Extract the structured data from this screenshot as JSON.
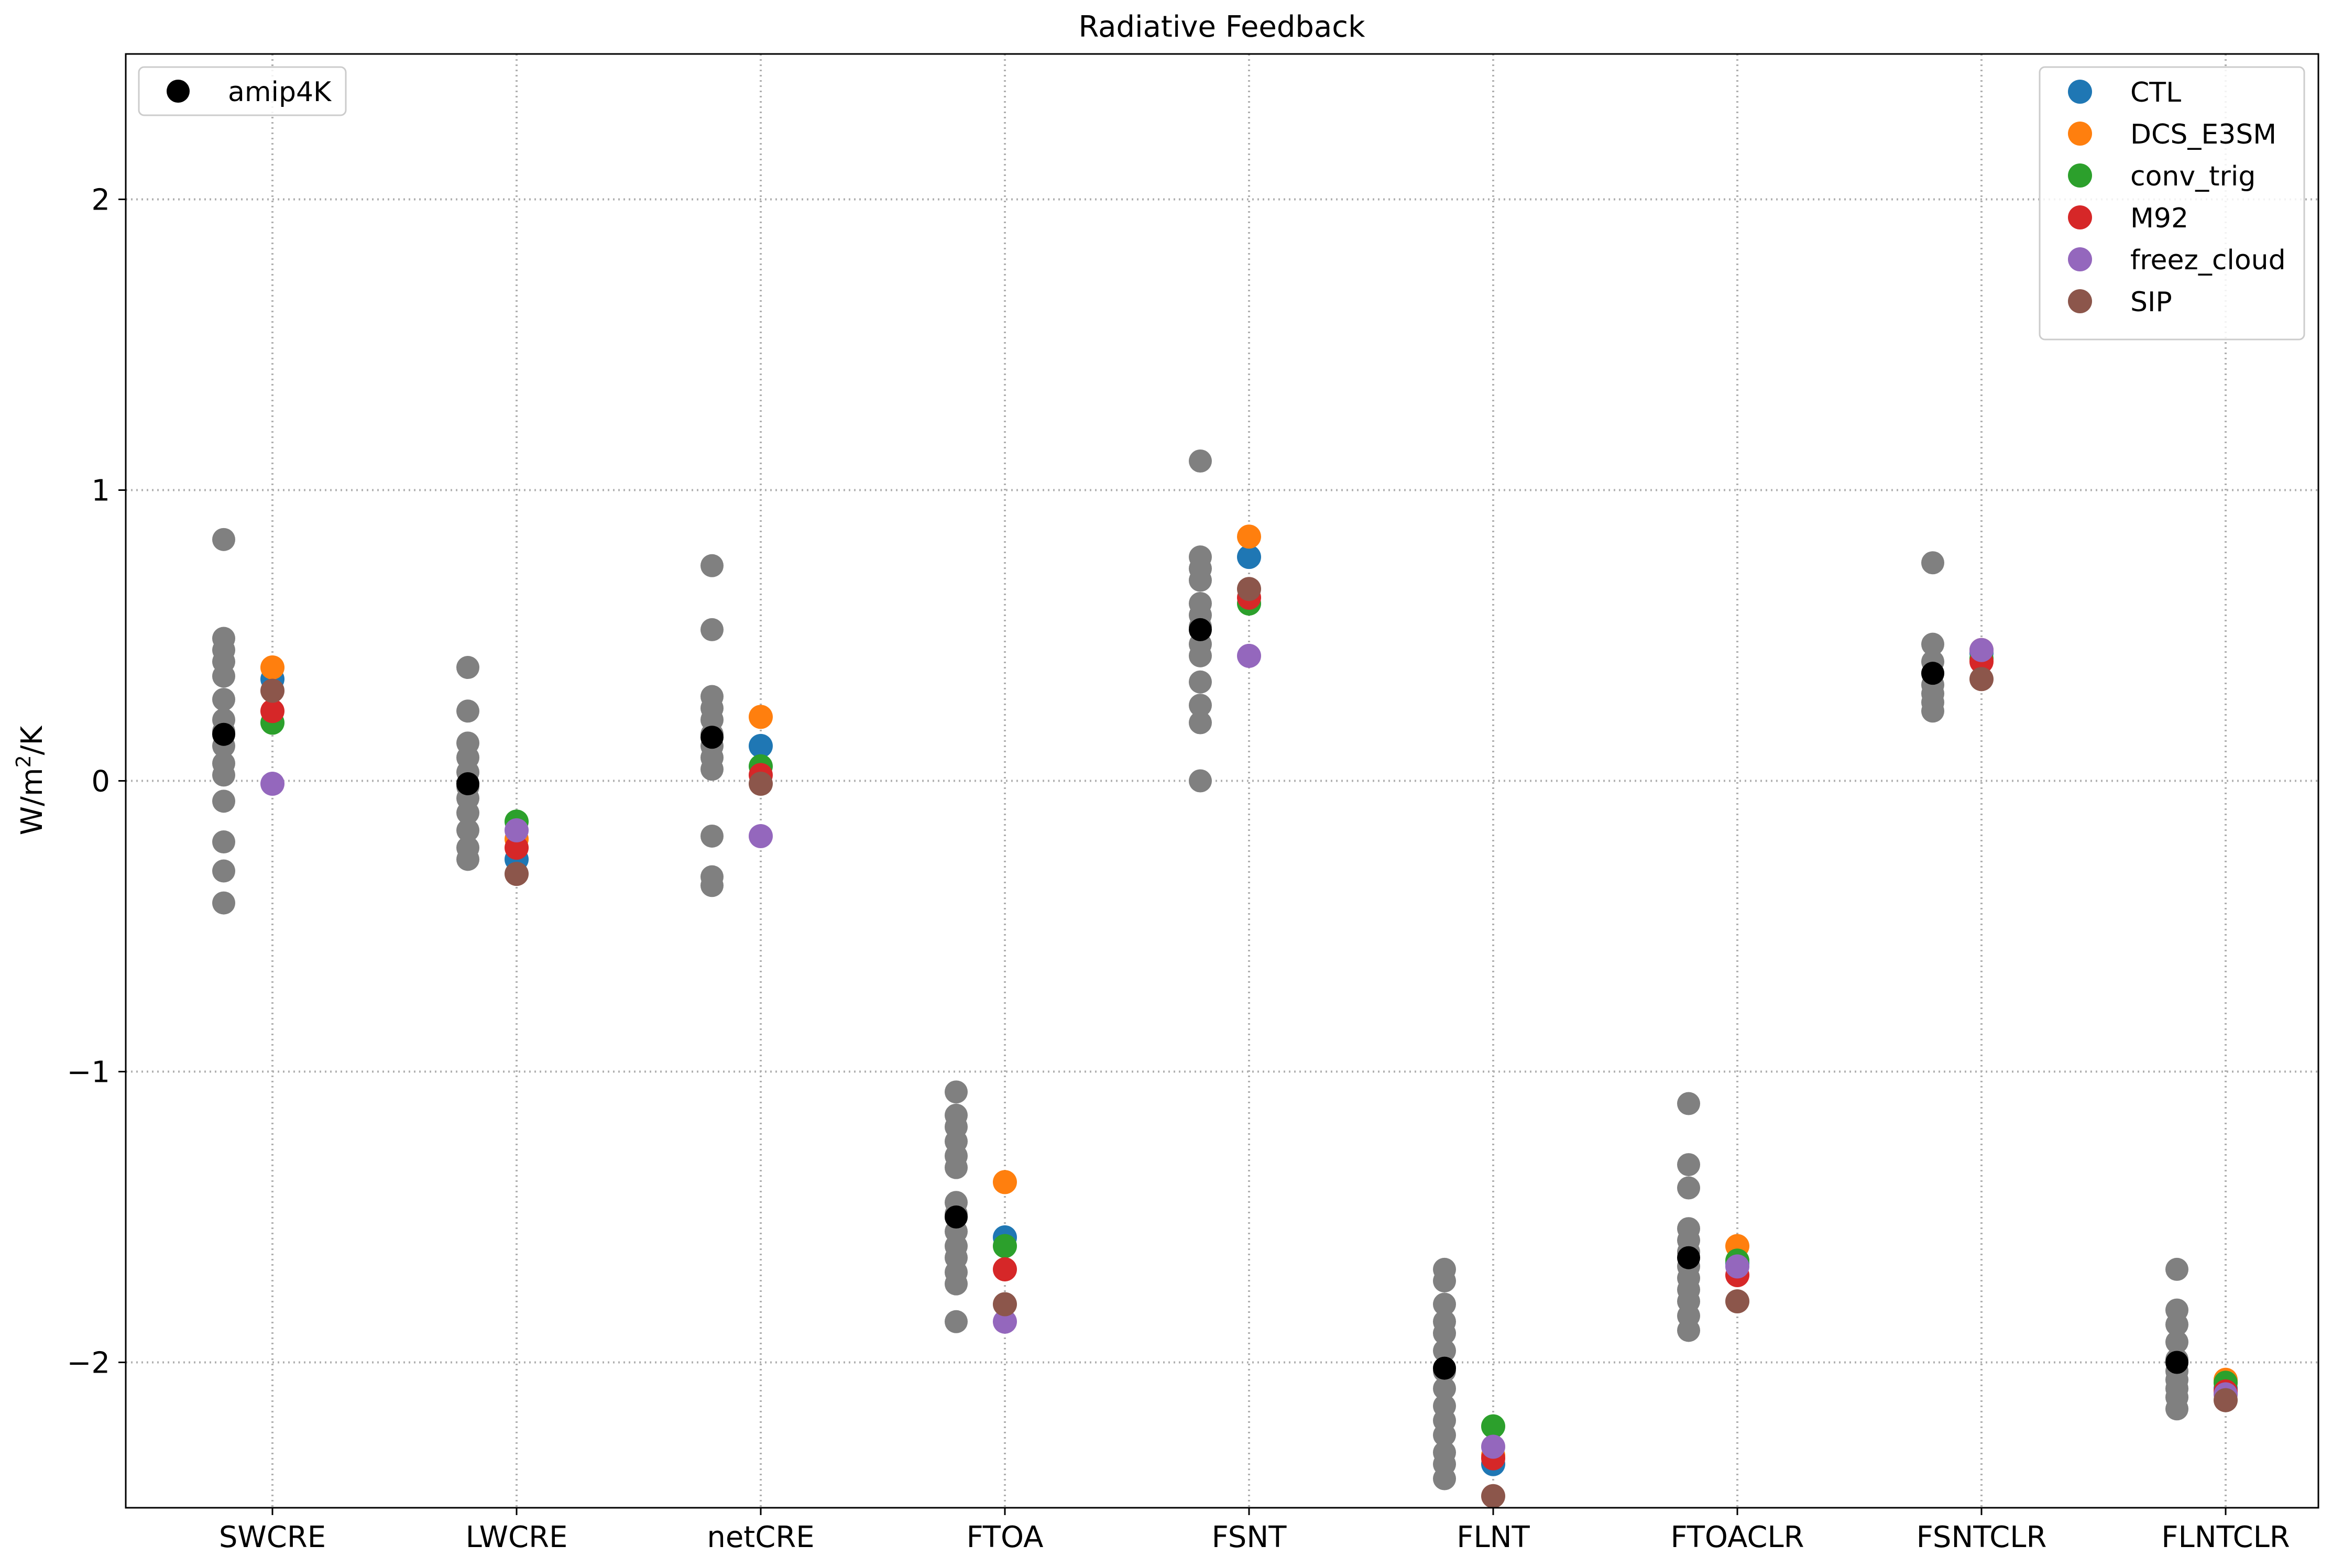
{
  "chart_data": {
    "type": "scatter",
    "title": "Radiative Feedback",
    "ylabel_base": "W/m",
    "ylabel_sup": "2",
    "ylabel_tail": "/K",
    "ylim": [
      -2.5,
      2.5
    ],
    "yticks": [
      2,
      1,
      0,
      -1,
      -2
    ],
    "ytick_labels": [
      "2",
      "1",
      "0",
      "−1",
      "−2"
    ],
    "grid": true,
    "categories": [
      "SWCRE",
      "LWCRE",
      "netCRE",
      "FTOA",
      "FSNT",
      "FLNT",
      "FTOACLR",
      "FSNTCLR",
      "FLNTCLR"
    ],
    "gray_color": "#808080",
    "gray_points": [
      [
        0.83,
        0.49,
        0.45,
        0.41,
        0.36,
        0.28,
        0.21,
        0.17,
        0.12,
        0.06,
        0.02,
        -0.07,
        -0.21,
        -0.31,
        -0.42
      ],
      [
        0.39,
        0.24,
        0.13,
        0.08,
        0.03,
        -0.02,
        -0.06,
        -0.11,
        -0.17,
        -0.23,
        -0.27
      ],
      [
        0.74,
        0.52,
        0.29,
        0.25,
        0.21,
        0.16,
        0.12,
        0.08,
        0.04,
        -0.19,
        -0.33,
        -0.36
      ],
      [
        -1.07,
        -1.15,
        -1.19,
        -1.24,
        -1.29,
        -1.33,
        -1.45,
        -1.49,
        -1.55,
        -1.6,
        -1.64,
        -1.69,
        -1.73,
        -1.86
      ],
      [
        1.1,
        0.77,
        0.73,
        0.69,
        0.61,
        0.57,
        0.53,
        0.47,
        0.43,
        0.34,
        0.26,
        0.2,
        0.0
      ],
      [
        -1.68,
        -1.72,
        -1.8,
        -1.86,
        -1.9,
        -1.96,
        -2.03,
        -2.09,
        -2.15,
        -2.2,
        -2.25,
        -2.31,
        -2.35,
        -2.4
      ],
      [
        -1.11,
        -1.32,
        -1.4,
        -1.54,
        -1.58,
        -1.62,
        -1.67,
        -1.71,
        -1.75,
        -1.79,
        -1.84,
        -1.89
      ],
      [
        0.75,
        0.47,
        0.41,
        0.37,
        0.33,
        0.3,
        0.27,
        0.24
      ],
      [
        -1.68,
        -1.82,
        -1.87,
        -1.93,
        -1.99,
        -2.03,
        -2.06,
        -2.09,
        -2.12,
        -2.16
      ]
    ],
    "amip4K": {
      "name": "amip4K",
      "color": "#000000",
      "values": [
        0.16,
        -0.01,
        0.15,
        -1.5,
        0.52,
        -2.02,
        -1.64,
        0.37,
        -2.0
      ]
    },
    "series": [
      {
        "name": "CTL",
        "color": "#1f77b4",
        "values": [
          0.35,
          -0.27,
          0.12,
          -1.57,
          0.77,
          -2.35,
          -1.66,
          0.44,
          -2.09
        ]
      },
      {
        "name": "DCS_E3SM",
        "color": "#ff7f0e",
        "values": [
          0.39,
          -0.2,
          0.22,
          -1.38,
          0.84,
          -2.32,
          -1.6,
          0.45,
          -2.06
        ]
      },
      {
        "name": "conv_trig",
        "color": "#2ca02c",
        "values": [
          0.2,
          -0.14,
          0.05,
          -1.6,
          0.61,
          -2.22,
          -1.65,
          0.42,
          -2.07
        ]
      },
      {
        "name": "M92",
        "color": "#d62728",
        "values": [
          0.24,
          -0.23,
          0.02,
          -1.68,
          0.63,
          -2.33,
          -1.7,
          0.41,
          -2.1
        ]
      },
      {
        "name": "freez_cloud",
        "color": "#9467bd",
        "values": [
          -0.01,
          -0.17,
          -0.19,
          -1.86,
          0.43,
          -2.29,
          -1.67,
          0.45,
          -2.11
        ]
      },
      {
        "name": "SIP",
        "color": "#8c564b",
        "values": [
          0.31,
          -0.32,
          -0.01,
          -1.8,
          0.66,
          -2.46,
          -1.79,
          0.35,
          -2.13
        ]
      }
    ],
    "legend_main": "top-right",
    "legend_ref": "top-left"
  }
}
